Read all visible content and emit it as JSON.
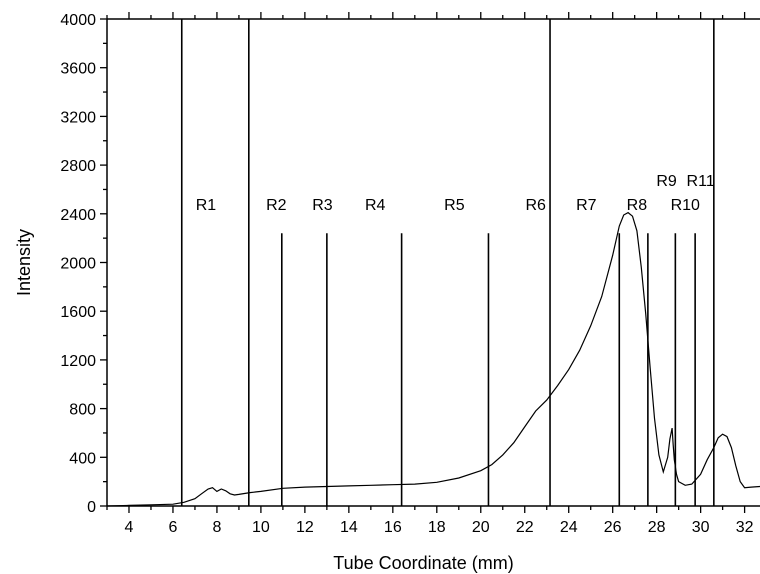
{
  "chart_data": {
    "type": "line",
    "title": "",
    "xlabel": "Tube Coordinate (mm)",
    "ylabel": "Intensity",
    "xlim": [
      3,
      32.7
    ],
    "ylim": [
      0,
      4000
    ],
    "x_ticks": [
      4,
      6,
      8,
      10,
      12,
      14,
      16,
      18,
      20,
      22,
      24,
      26,
      28,
      30,
      32
    ],
    "y_ticks": [
      0,
      400,
      800,
      1200,
      1600,
      2000,
      2400,
      2800,
      3200,
      3600,
      4000
    ],
    "grid": false,
    "legend": "none",
    "line_color": "#000000",
    "series": [
      {
        "x": [
          3.0,
          4.0,
          5.0,
          6.0,
          6.5,
          7.0,
          7.3,
          7.6,
          7.8,
          8.0,
          8.2,
          8.4,
          8.6,
          8.8,
          9.0,
          9.5,
          10.0,
          11.0,
          12.0,
          13.0,
          14.0,
          15.0,
          16.0,
          17.0,
          18.0,
          19.0,
          20.0,
          20.5,
          21.0,
          21.5,
          22.0,
          22.5,
          23.0,
          23.5,
          24.0,
          24.5,
          25.0,
          25.5,
          26.0,
          26.3,
          26.5,
          26.7,
          26.9,
          27.1,
          27.3,
          27.5,
          27.7,
          27.9,
          28.1,
          28.3,
          28.5,
          28.6,
          28.7,
          28.75,
          28.8,
          28.9,
          29.0,
          29.3,
          29.6,
          30.0,
          30.3,
          30.6,
          30.8,
          31.0,
          31.2,
          31.4,
          31.6,
          31.8,
          32.0,
          32.3,
          32.7
        ],
        "y": [
          0,
          5,
          10,
          15,
          30,
          60,
          100,
          140,
          150,
          120,
          140,
          125,
          100,
          90,
          95,
          110,
          120,
          145,
          155,
          160,
          165,
          170,
          175,
          180,
          195,
          230,
          290,
          340,
          420,
          520,
          650,
          780,
          870,
          990,
          1120,
          1280,
          1480,
          1720,
          2060,
          2300,
          2390,
          2410,
          2380,
          2260,
          1960,
          1580,
          1140,
          720,
          420,
          280,
          400,
          550,
          640,
          500,
          380,
          260,
          200,
          170,
          180,
          260,
          380,
          480,
          560,
          590,
          570,
          480,
          330,
          200,
          150,
          155,
          160
        ]
      }
    ],
    "regions": [
      {
        "label": "R1",
        "label_x": 7.5,
        "label_y": 2430
      },
      {
        "label": "R2",
        "label_x": 10.7,
        "label_y": 2430
      },
      {
        "label": "R3",
        "label_x": 12.8,
        "label_y": 2430
      },
      {
        "label": "R4",
        "label_x": 15.2,
        "label_y": 2430
      },
      {
        "label": "R5",
        "label_x": 18.8,
        "label_y": 2430
      },
      {
        "label": "R6",
        "label_x": 22.5,
        "label_y": 2430
      },
      {
        "label": "R7",
        "label_x": 24.8,
        "label_y": 2430
      },
      {
        "label": "R8",
        "label_x": 27.1,
        "label_y": 2430
      },
      {
        "label": "R9",
        "label_x": 28.45,
        "label_y": 2630
      },
      {
        "label": "R10",
        "label_x": 29.3,
        "label_y": 2430
      },
      {
        "label": "R11",
        "label_x": 30.0,
        "label_y": 2630
      }
    ],
    "boundaries": [
      {
        "x": 6.4,
        "y_top": 4000
      },
      {
        "x": 9.45,
        "y_top": 4000
      },
      {
        "x": 10.95,
        "y_top": 2240
      },
      {
        "x": 13.0,
        "y_top": 2240
      },
      {
        "x": 16.4,
        "y_top": 2240
      },
      {
        "x": 20.35,
        "y_top": 2240
      },
      {
        "x": 23.15,
        "y_top": 4000
      },
      {
        "x": 26.3,
        "y_top": 2240
      },
      {
        "x": 27.6,
        "y_top": 2240
      },
      {
        "x": 28.85,
        "y_top": 2240
      },
      {
        "x": 29.75,
        "y_top": 2240
      },
      {
        "x": 30.6,
        "y_top": 4000
      }
    ]
  }
}
